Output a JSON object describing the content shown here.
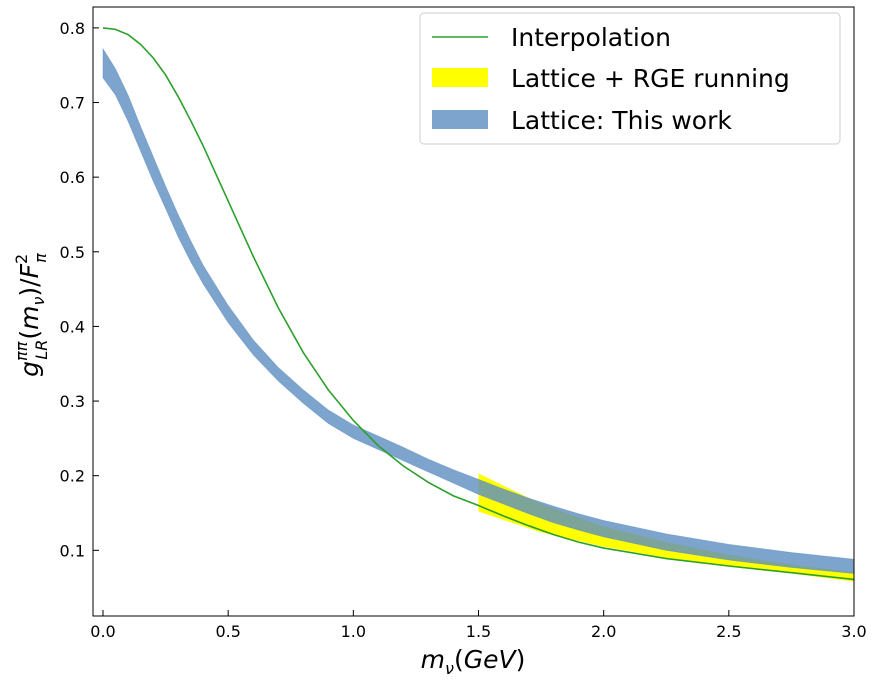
{
  "chart_data": {
    "type": "line",
    "xlabel": "m_ν(GeV)",
    "ylabel": "g_LR^ππ(m_ν)/F_π^2",
    "xlim": [
      -0.04,
      3.0
    ],
    "ylim": [
      0.012,
      0.828
    ],
    "xticks": [
      0.0,
      0.5,
      1.0,
      1.5,
      2.0,
      2.5,
      3.0
    ],
    "xtick_labels": [
      "0.0",
      "0.5",
      "1.0",
      "1.5",
      "2.0",
      "2.5",
      "3.0"
    ],
    "yticks": [
      0.1,
      0.2,
      0.3,
      0.4,
      0.5,
      0.6,
      0.7,
      0.8
    ],
    "ytick_labels": [
      "0.1",
      "0.2",
      "0.3",
      "0.4",
      "0.5",
      "0.6",
      "0.7",
      "0.8"
    ],
    "grid": false,
    "legend_position": "top-right",
    "series": [
      {
        "name": "Interpolation",
        "kind": "line",
        "color": "#2ca02c",
        "x": [
          0.0,
          0.05,
          0.1,
          0.15,
          0.2,
          0.25,
          0.3,
          0.35,
          0.4,
          0.45,
          0.5,
          0.6,
          0.7,
          0.8,
          0.9,
          1.0,
          1.1,
          1.2,
          1.3,
          1.4,
          1.5,
          1.6,
          1.7,
          1.8,
          1.9,
          2.0,
          2.25,
          2.5,
          2.75,
          3.0
        ],
        "y": [
          0.8,
          0.798,
          0.791,
          0.778,
          0.76,
          0.737,
          0.708,
          0.676,
          0.642,
          0.605,
          0.568,
          0.494,
          0.425,
          0.365,
          0.315,
          0.274,
          0.24,
          0.213,
          0.191,
          0.173,
          0.16,
          0.146,
          0.133,
          0.121,
          0.111,
          0.103,
          0.089,
          0.079,
          0.07,
          0.061
        ]
      },
      {
        "name": "Lattice + RGE running",
        "kind": "band",
        "color": "#ffff00",
        "x": [
          1.5,
          1.75,
          2.0,
          2.25,
          2.5,
          2.75,
          3.0
        ],
        "lower": [
          0.152,
          0.124,
          0.105,
          0.09,
          0.078,
          0.069,
          0.058
        ],
        "upper": [
          0.203,
          0.162,
          0.132,
          0.111,
          0.094,
          0.081,
          0.07
        ]
      },
      {
        "name": "Lattice: This work",
        "kind": "band",
        "color": "#5b8dbf",
        "x": [
          0.0,
          0.05,
          0.1,
          0.15,
          0.2,
          0.25,
          0.3,
          0.35,
          0.4,
          0.5,
          0.6,
          0.7,
          0.8,
          0.9,
          1.0,
          1.1,
          1.2,
          1.3,
          1.4,
          1.5,
          1.6,
          1.7,
          1.8,
          1.9,
          2.0,
          2.25,
          2.5,
          2.75,
          3.0
        ],
        "lower": [
          0.733,
          0.71,
          0.675,
          0.635,
          0.595,
          0.558,
          0.52,
          0.487,
          0.457,
          0.405,
          0.362,
          0.327,
          0.297,
          0.27,
          0.25,
          0.235,
          0.22,
          0.205,
          0.19,
          0.175,
          0.162,
          0.149,
          0.137,
          0.127,
          0.118,
          0.1,
          0.087,
          0.077,
          0.069
        ],
        "upper": [
          0.772,
          0.745,
          0.71,
          0.668,
          0.628,
          0.588,
          0.55,
          0.515,
          0.482,
          0.428,
          0.382,
          0.345,
          0.315,
          0.288,
          0.268,
          0.253,
          0.238,
          0.222,
          0.208,
          0.195,
          0.182,
          0.17,
          0.159,
          0.149,
          0.14,
          0.122,
          0.108,
          0.097,
          0.088
        ]
      }
    ]
  }
}
